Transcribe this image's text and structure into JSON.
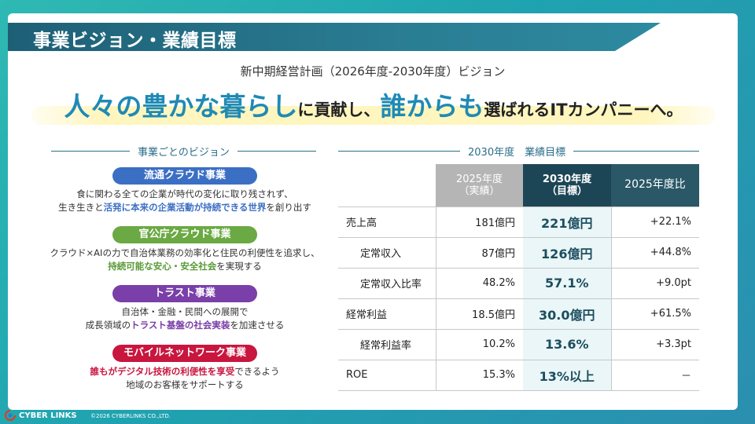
{
  "header": {
    "title": "事業ビジョン・業績目標"
  },
  "vision": {
    "subtitle": "新中期経営計画（2026年度-2030年度）ビジョン",
    "tagline_parts": [
      "人々の豊かな暮らし",
      "に貢献し、",
      "誰からも",
      "選ばれるITカンパニーへ。"
    ]
  },
  "left_section": {
    "heading": "事業ごとのビジョン",
    "businesses": [
      {
        "name": "流通クラウド事業",
        "color": "#3b6fc4",
        "line1": "食に関わる全ての企業が時代の変化に取り残されず、",
        "line2_pre": "生き生きと",
        "line2_em": "活発に本来の企業活動が持続できる世界",
        "line2_post": "を創り出す"
      },
      {
        "name": "官公庁クラウド事業",
        "color": "#6aa943",
        "line1": "クラウド×AIの力で自治体業務の効率化と住民の利便性を追求し、",
        "line2_pre": "",
        "line2_em": "持続可能な安心・安全社会",
        "line2_post": "を実現する"
      },
      {
        "name": "トラスト事業",
        "color": "#7a3fa8",
        "line1": "自治体・金融・民間への展開で",
        "line2_pre": "成長領域の",
        "line2_em": "トラスト基盤の社会実装",
        "line2_post": "を加速させる"
      },
      {
        "name": "モバイルネットワーク事業",
        "color": "#c8163f",
        "line1_em": "誰もがデジタル技術の利便性を享受",
        "line1_post": "できるよう",
        "line2": "地域のお客様をサポートする"
      }
    ]
  },
  "right_section": {
    "heading": "2030年度　業績目標",
    "columns": {
      "c2025_line1": "2025年度",
      "c2025_line2": "（実績）",
      "c2030_line1": "2030年度",
      "c2030_line2": "（目標）",
      "cratio": "2025年度比"
    },
    "rows": [
      {
        "label": "売上高",
        "sub": false,
        "v2025": "181億円",
        "v2030": "221億円",
        "ratio": "+22.1%"
      },
      {
        "label": "定常収入",
        "sub": true,
        "v2025": "87億円",
        "v2030": "126億円",
        "ratio": "+44.8%"
      },
      {
        "label": "定常収入比率",
        "sub": true,
        "v2025": "48.2%",
        "v2030": "57.1%",
        "ratio": "+9.0pt"
      },
      {
        "label": "経常利益",
        "sub": false,
        "v2025": "18.5億円",
        "v2030": "30.0億円",
        "ratio": "+61.5%"
      },
      {
        "label": "経常利益率",
        "sub": true,
        "v2025": "10.2%",
        "v2030": "13.6%",
        "ratio": "+3.3pt"
      },
      {
        "label": "ROE",
        "sub": false,
        "v2025": "15.3%",
        "v2030": "13%以上",
        "ratio": "－"
      }
    ]
  },
  "footer": {
    "logo_text": "CYBER LINKS",
    "copyright": "©2026 CYBERLINKS CO.,LTD."
  }
}
